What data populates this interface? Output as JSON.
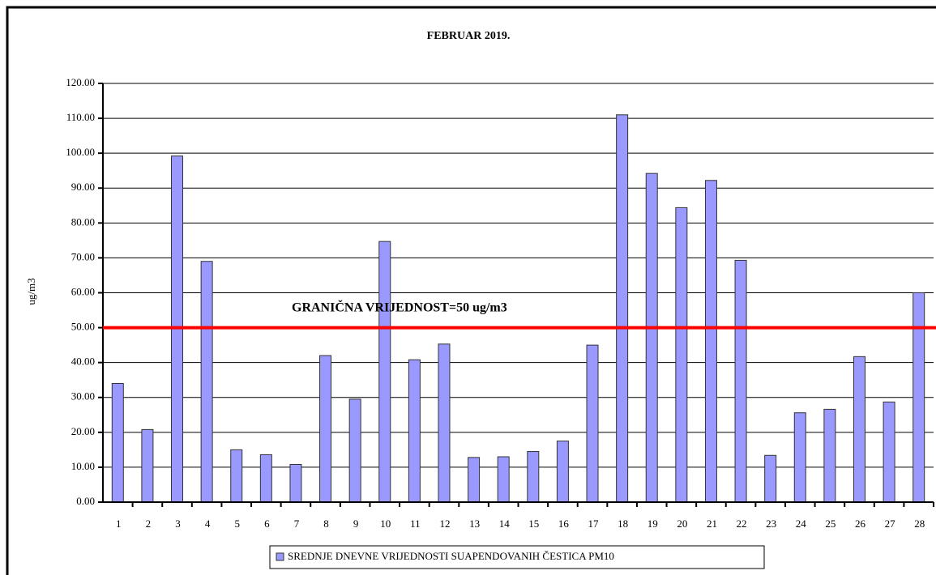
{
  "chart_data": {
    "type": "bar",
    "title": "FEBRUAR 2019.",
    "y_label": "ug/m3",
    "categories": [
      "1",
      "2",
      "3",
      "4",
      "5",
      "6",
      "7",
      "8",
      "9",
      "10",
      "11",
      "12",
      "13",
      "14",
      "15",
      "16",
      "17",
      "18",
      "19",
      "20",
      "21",
      "22",
      "23",
      "24",
      "25",
      "26",
      "27",
      "28"
    ],
    "series": [
      {
        "name": "SREDNJE DNEVNE VRIJEDNOSTI SUAPENDOVANIH ČESTICA PM10",
        "color": "#9999ff",
        "values": [
          34,
          20.8,
          99.2,
          69,
          15,
          13.6,
          10.8,
          42,
          29.5,
          74.7,
          40.8,
          45.3,
          12.8,
          13,
          14.5,
          17.5,
          45,
          111,
          94.2,
          84.4,
          92.2,
          69.3,
          13.4,
          25.6,
          26.6,
          41.7,
          28.7,
          60
        ]
      }
    ],
    "ylim": [
      0,
      120
    ],
    "yticks": [
      {
        "value": 0,
        "label": "0.00"
      },
      {
        "value": 10,
        "label": "10.00"
      },
      {
        "value": 20,
        "label": "20.00"
      },
      {
        "value": 30,
        "label": "30.00"
      },
      {
        "value": 40,
        "label": "40.00"
      },
      {
        "value": 50,
        "label": "50.00"
      },
      {
        "value": 60,
        "label": "60.00"
      },
      {
        "value": 70,
        "label": "70.00"
      },
      {
        "value": 80,
        "label": "80.00"
      },
      {
        "value": 90,
        "label": "90.00"
      },
      {
        "value": 100,
        "label": "100.00"
      },
      {
        "value": 110,
        "label": "110.00"
      },
      {
        "value": 120,
        "label": "120.00"
      }
    ],
    "grid": true,
    "threshold": {
      "value": 50,
      "label": "GRANIČNA VRIJEDNOST=50 ug/m3",
      "color": "#ff0000"
    },
    "legend": "bottom"
  }
}
